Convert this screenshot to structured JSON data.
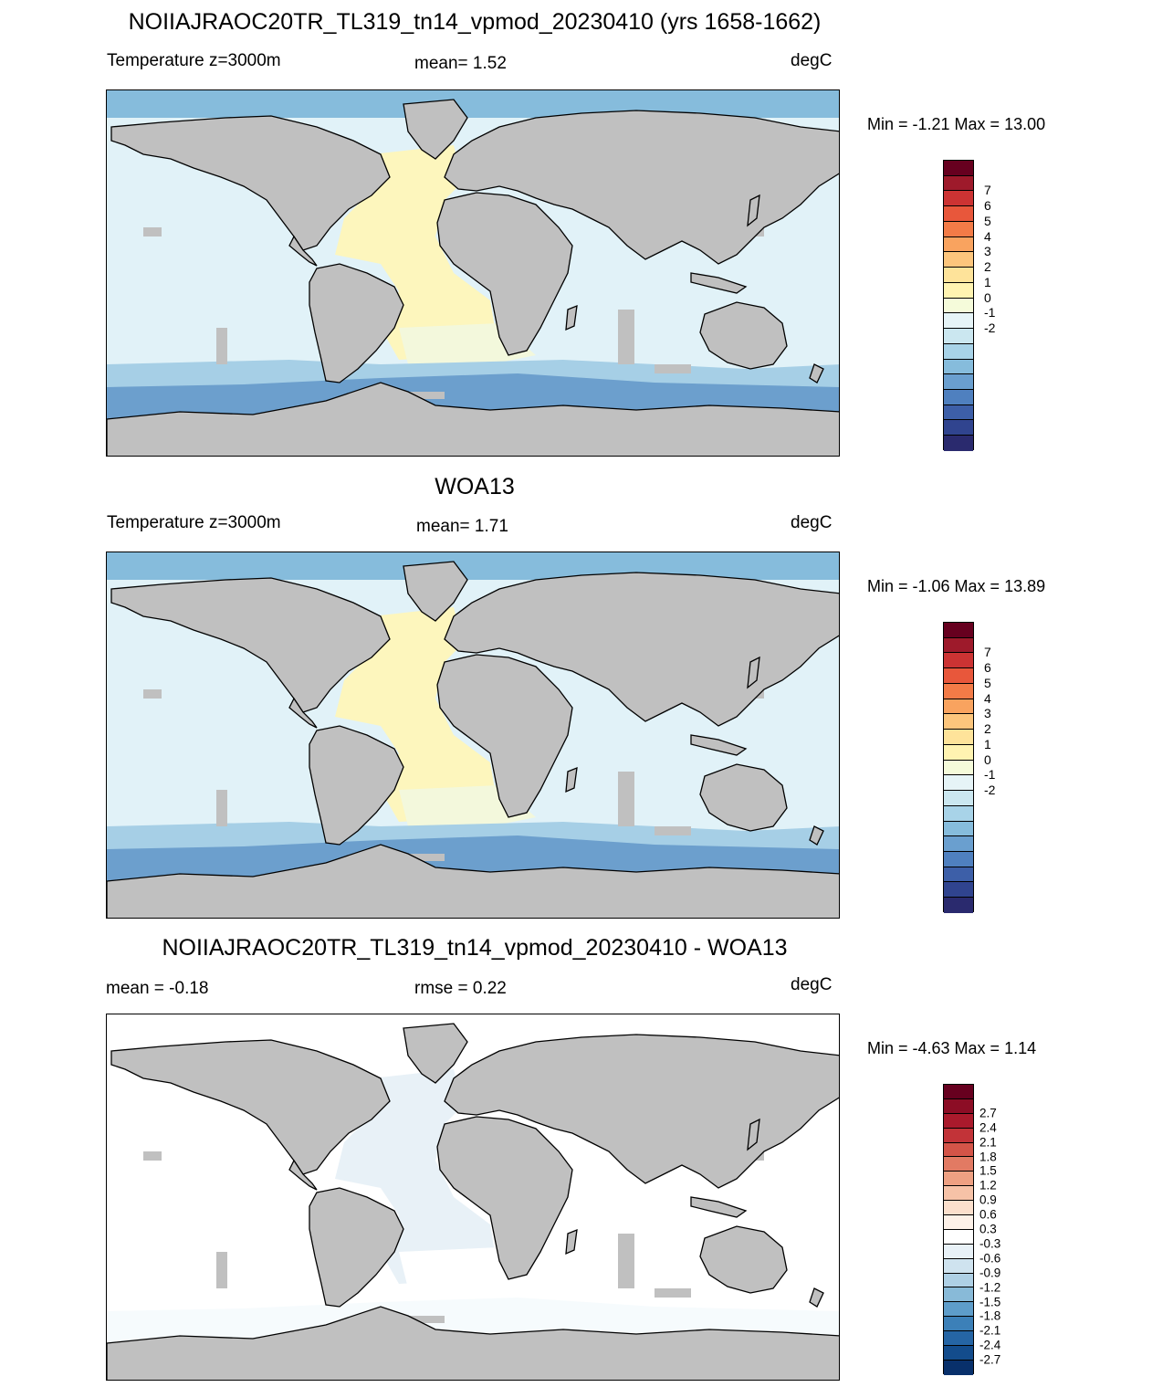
{
  "panels": [
    {
      "id": "model",
      "title": "NOIIAJRAOC20TR_TL319_tn14_vpmod_20230410 (yrs 1658-1662)",
      "left_label": "Temperature z=3000m",
      "center_label": "mean=   1.52",
      "right_label": "degC",
      "minmax": "Min =  -1.21 Max =  13.00",
      "field": "model"
    },
    {
      "id": "obs",
      "title": "WOA13",
      "left_label": "Temperature z=3000m",
      "center_label": "mean=   1.71",
      "right_label": "degC",
      "minmax": "Min =  -1.06 Max =  13.89",
      "field": "obs"
    },
    {
      "id": "diff",
      "title": "NOIIAJRAOC20TR_TL319_tn14_vpmod_20230410 - WOA13",
      "left_label": "mean =  -0.18",
      "center_label": "rmse =   0.22",
      "right_label": "degC",
      "minmax": "Min =  -4.63 Max =   1.14",
      "field": "diff"
    }
  ],
  "colorbars": {
    "temperature": {
      "ticks": [
        "7",
        "6",
        "5",
        "4",
        "3",
        "2",
        "1",
        "0",
        "-1",
        "-2"
      ],
      "colors": [
        "#67001f",
        "#9e1a2b",
        "#cc3333",
        "#e8573b",
        "#f37b47",
        "#f9a35f",
        "#fcc57c",
        "#fee39a",
        "#fff3b1",
        "#f5fbda",
        "#e6f4f7",
        "#cbe7f0",
        "#a8d3e8",
        "#86bcdc",
        "#6a9fcf",
        "#4f80bf",
        "#3d5fa8",
        "#30448f",
        "#2a2a6e"
      ]
    },
    "difference": {
      "ticks": [
        "2.7",
        "2.4",
        "2.1",
        "1.8",
        "1.5",
        "1.2",
        "0.9",
        "0.6",
        "0.3",
        "-0.3",
        "-0.6",
        "-0.9",
        "-1.2",
        "-1.5",
        "-1.8",
        "-2.1",
        "-2.4",
        "-2.7"
      ],
      "colors": [
        "#67001f",
        "#8c0d25",
        "#aa1a2c",
        "#c23338",
        "#d45448",
        "#e27a63",
        "#eea082",
        "#f6c2a7",
        "#fbdfcc",
        "#fdf1e8",
        "#ffffff",
        "#e8f1f7",
        "#cfe3ef",
        "#aed0e5",
        "#88bad8",
        "#5e9dca",
        "#3c80b8",
        "#2565a5",
        "#134c8c",
        "#08306b"
      ]
    }
  }
}
